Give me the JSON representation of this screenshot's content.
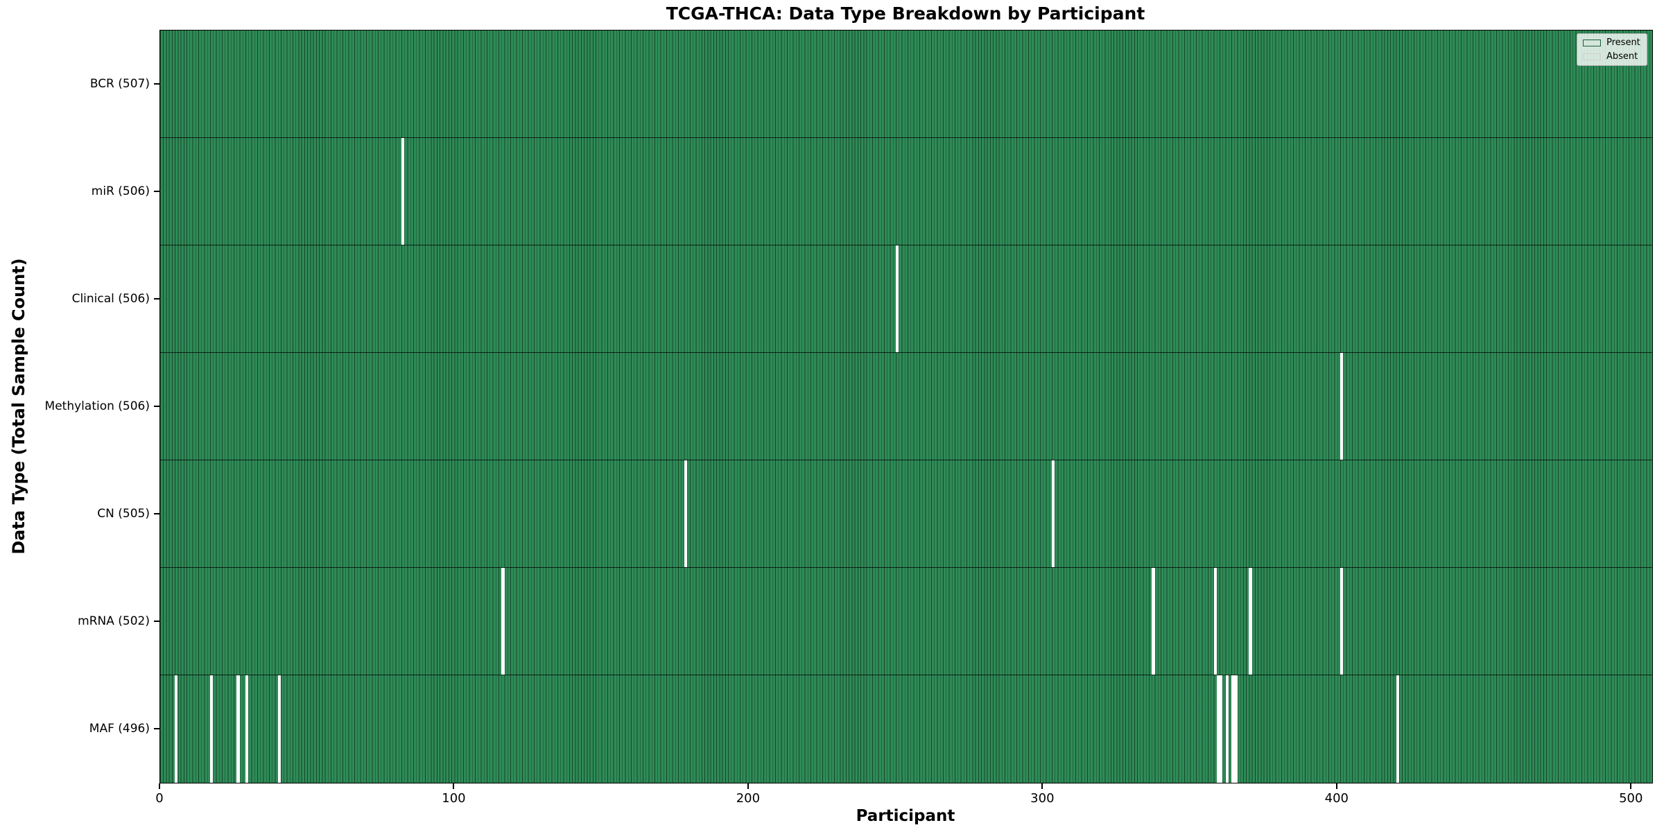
{
  "chart_data": {
    "type": "heatmap",
    "title": "TCGA-THCA: Data Type Breakdown by Participant",
    "xlabel": "Participant",
    "ylabel": "Data Type (Total Sample Count)",
    "x_ticks": [
      0,
      100,
      200,
      300,
      400,
      500
    ],
    "x_range": [
      0,
      507
    ],
    "total_participants": 507,
    "grid": false,
    "rows": [
      {
        "label": "BCR (507)",
        "count": 507,
        "absent_participants": []
      },
      {
        "label": "miR (506)",
        "count": 506,
        "absent_participants": [
          82
        ]
      },
      {
        "label": "Clinical (506)",
        "count": 506,
        "absent_participants": [
          250
        ]
      },
      {
        "label": "Methylation (506)",
        "count": 506,
        "absent_participants": [
          401
        ]
      },
      {
        "label": "CN (505)",
        "count": 505,
        "absent_participants": [
          178,
          303
        ]
      },
      {
        "label": "mRNA (502)",
        "count": 502,
        "absent_participants": [
          116,
          337,
          358,
          370,
          401
        ]
      },
      {
        "label": "MAF (496)",
        "count": 496,
        "absent_participants": [
          5,
          17,
          26,
          29,
          40,
          359,
          360,
          362,
          364,
          365,
          420
        ]
      }
    ],
    "legend": {
      "position": "upper right",
      "entries": [
        {
          "label": "Present",
          "color": "#2e8b57"
        },
        {
          "label": "Absent",
          "color": "#ffffff"
        }
      ]
    },
    "colors": {
      "present": "#2e8b57",
      "absent": "#ffffff",
      "bar_edge": "rgba(0,0,0,0.5)",
      "row_separator": "rgba(0,0,0,0.75)"
    }
  }
}
